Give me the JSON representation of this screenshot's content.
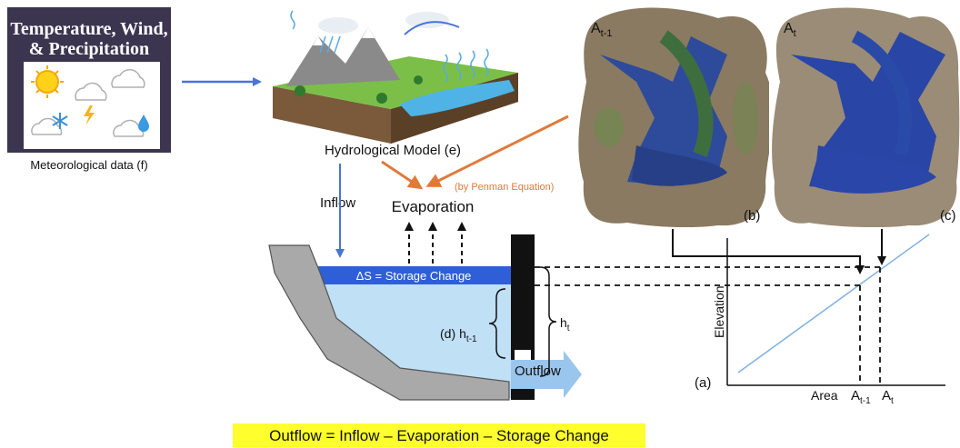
{
  "meteo": {
    "title_line1": "Temperature, Wind,",
    "title_line2": "& Precipitation",
    "caption": "Meteorological data (f)",
    "icons": [
      "sun-icon",
      "cloud-icon",
      "snowflake-icon",
      "lightning-icon",
      "raindrop-icon"
    ]
  },
  "hydro": {
    "caption": "Hydrological Model (e)"
  },
  "satellite": {
    "left_label": "A",
    "left_sub": "t-1",
    "left_tag": "(b)",
    "right_label": "A",
    "right_sub": "t",
    "right_tag": "(c)"
  },
  "flows": {
    "inflow": "Inflow",
    "evaporation": "Evaporation",
    "penman": "(by Penman Equation)",
    "storage_change": "ΔS = Storage Change",
    "reservoir_tag": "(d)",
    "h_prev": "h",
    "h_prev_sub": "t-1",
    "h_now": "h",
    "h_now_sub": "t",
    "outflow": "Outflow"
  },
  "curve": {
    "tag": "(a)",
    "ylabel": "Elevation",
    "xlabel": "Area",
    "x_tick1": "A",
    "x_tick1_sub": "t-1",
    "x_tick2": "A",
    "x_tick2_sub": "t"
  },
  "equation": "Outflow = Inflow – Evaporation – Storage Change",
  "colors": {
    "blue_arrow": "#4a74d4",
    "orange_arrow": "#e07a3a",
    "water_light": "#bfe0f5",
    "water_band": "#2f5fd6",
    "dam_gray": "#a9a9a9",
    "highlight": "#ffff2e",
    "meteo_bg": "#3b3550"
  }
}
